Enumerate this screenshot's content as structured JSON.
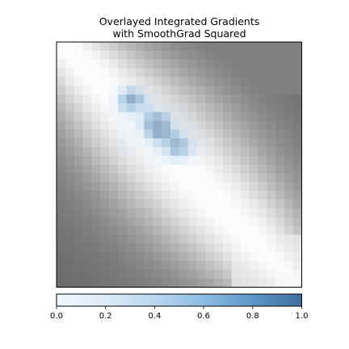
{
  "chart_data": {
    "type": "heatmap",
    "title_lines": [
      "Overlayed Integrated Gradients",
      "with SmoothGrad Squared"
    ],
    "grid_size": 28,
    "base_colormap": "gray",
    "overlay_colormap": "Blues",
    "axes_visible": false,
    "colorbar": {
      "orientation": "horizontal",
      "placement": "bottom",
      "range": [
        0.0,
        1.0
      ],
      "ticks": [
        0.0,
        0.2,
        0.4,
        0.6,
        0.8,
        1.0
      ],
      "tick_labels": [
        "0.0",
        "0.2",
        "0.4",
        "0.6",
        "0.8",
        "1.0"
      ],
      "color_low": "#f0f7fd",
      "color_high": "#3e6f9e"
    },
    "image_description": "28x28 grayscale image with bright diagonal stroke from top-left to bottom-right; attribution overlay (blue) concentrated along the stroke center",
    "base_intensity": [
      "mmmmmmmmmmmmmmmmmmmmmmmmmmmm",
      "mmmmmmmmmmmmmmmmmmmmmmmmmmmm",
      "mmmmmmmmmmmmmmmmmmmmmmmmmmmm",
      "mmmmmmmmmmmmmmmmmmmmmmmmmmmm",
      "mmmmmmmmmmmmmmmmmmmmmmmmmmmm",
      "mmmmmmmmmmmmmmmmmmmmmmmmmmmm",
      "mmmmmmmmmmmmmmmmmmmmmmmmmmmm",
      "mmmmmmmmmmmmmmmmmmmmmmmmmmmm",
      "mmmmmmmmmmmmmmmmmmmmmmmmmmmm",
      "mmmmmmmmmmmmmmmmmmmmmmmmmmmm",
      "mmmmmmmmmmmmmmmmmmmmmmmmmmmm",
      "mmmmmmmmmmmmmmmmmmmmmmmmmmmm",
      "mmmmmmmmmmmmmmmmmmmmmmmmmmmm",
      "mmmmmmmmmmmmmmmmmmmmmmmmmmmm",
      "mmmmmmmmmmmmmmmmmmmmmmmmmmmm",
      "mmmmmmmmmmmmmmmmmmmmmmmmmmmm",
      "mmmmmmmmmmmmmmmmmmmmmmmmmmmm",
      "mmmmmmmmmmmmmmmmmmmmmmmmmmmm",
      "mmmmmmmmmmmmmmmmmmmmmmmmmmmm",
      "mmmmmmmmmmmmmmmmmmmmmmmmmmmm",
      "mmmmmmmmmmmmmmmmmmmmmmmmmmmm",
      "mmmmmmmmmmmmmmmmmmmmmmmmmmmm",
      "mmmmmmmmmmmmmmmmmmmmmmmmmmmm",
      "mmmmmmmmmmmmmmmmmmmmmmmmmmmm",
      "mmmmmmmmmmmmmmmmmmmmmmmmmmmm",
      "mmmmmmmmmmmmmmmmmmmmmmmmmmmm",
      "mmmmmmmmmmmmmmmmmmmmmmmmmmmm",
      "mmmmmmmmmmmmmmmmmmmmmmmmmmmm"
    ]
  }
}
